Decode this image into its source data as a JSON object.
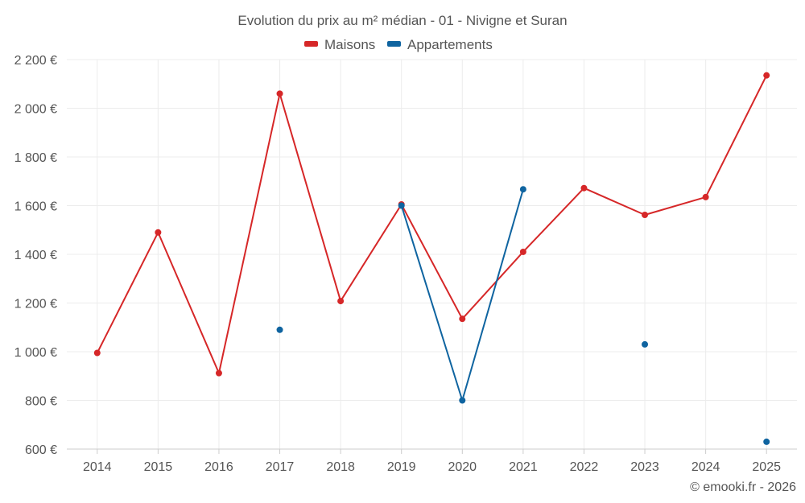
{
  "chart_data": {
    "type": "line",
    "title": "Evolution du prix au m² médian - 01 - Nivigne et Suran",
    "xlabel": "",
    "ylabel": "",
    "categories": [
      "2014",
      "2015",
      "2016",
      "2017",
      "2018",
      "2019",
      "2020",
      "2021",
      "2022",
      "2023",
      "2024",
      "2025"
    ],
    "ylim": [
      600,
      2200
    ],
    "yticks": [
      600,
      800,
      1000,
      1200,
      1400,
      1600,
      1800,
      2000,
      2200
    ],
    "ytick_labels": [
      "600 €",
      "800 €",
      "1 000 €",
      "1 200 €",
      "1 400 €",
      "1 600 €",
      "1 800 €",
      "2 000 €",
      "2 200 €"
    ],
    "grid": true,
    "legend_position": "top-center",
    "series": [
      {
        "name": "Maisons",
        "color": "#d62728",
        "values": [
          995,
          1490,
          912,
          2060,
          1208,
          1605,
          1135,
          1410,
          1672,
          1562,
          1635,
          2135
        ]
      },
      {
        "name": "Appartements",
        "color": "#0f64a0",
        "values": [
          null,
          null,
          null,
          1090,
          null,
          1600,
          800,
          1667,
          null,
          1030,
          null,
          630
        ]
      }
    ]
  },
  "credit": "© emooki.fr - 2026"
}
